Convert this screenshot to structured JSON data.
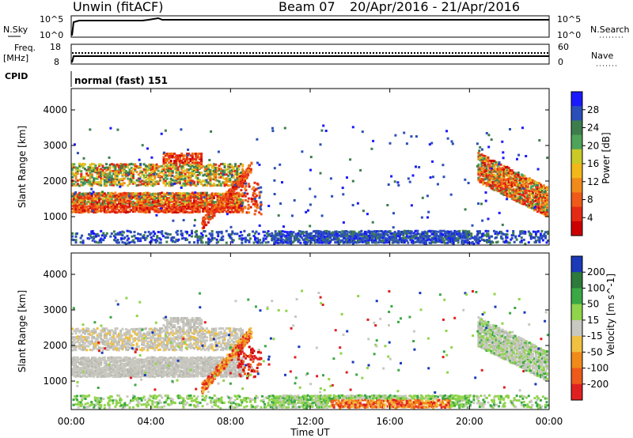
{
  "header": {
    "station": "Unwin (fitACF)",
    "beam": "Beam 07",
    "date_range": "20/Apr/2016 - 21/Apr/2016"
  },
  "nsky_panel": {
    "label": "N.Sky",
    "ticks_left": [
      "10^5",
      "10^0"
    ],
    "ticks_right": [
      "10^5",
      "10^0"
    ],
    "right_label": "N.Search"
  },
  "freq_panel": {
    "label_line1": "Freq.",
    "label_line2": "[MHz]",
    "ticks_left": [
      "18",
      "8"
    ],
    "ticks_right": [
      "60",
      "0"
    ],
    "right_label": "Nave"
  },
  "cpid_panel": {
    "label": "CPID",
    "mode_text": "normal (fast) 151"
  },
  "time_axis": {
    "label": "Time UT",
    "ticks": [
      "00:00",
      "04:00",
      "08:00",
      "12:00",
      "16:00",
      "20:00",
      "00:00"
    ]
  },
  "chart_data": [
    {
      "type": "heatmap",
      "name": "power",
      "ylabel": "Slant Range [km]",
      "yticks": [
        1000,
        2000,
        3000,
        4000
      ],
      "xlim": [
        0,
        24
      ],
      "ylim": [
        200,
        4600
      ],
      "colorbar": {
        "label": "Power [dB]",
        "ticks": [
          "4",
          "8",
          "12",
          "16",
          "20",
          "24",
          "28"
        ],
        "colors": [
          "#1a1aff",
          "#2a4fb8",
          "#3d7d4d",
          "#4fa35a",
          "#c9c928",
          "#f2b81a",
          "#f08a1a",
          "#ee5a1a",
          "#e52a14",
          "#cc0000"
        ]
      }
    },
    {
      "type": "heatmap",
      "name": "velocity",
      "ylabel": "Slant Range [km]",
      "yticks": [
        1000,
        2000,
        3000,
        4000
      ],
      "xlim": [
        0,
        24
      ],
      "ylim": [
        200,
        4600
      ],
      "colorbar": {
        "label": "Velocity [m s^-1]",
        "ticks": [
          "200",
          "100",
          "50",
          "15",
          "-15",
          "-50",
          "-100",
          "-200"
        ],
        "colors": [
          "#1a3ab8",
          "#2e7a3a",
          "#3aa845",
          "#8fd44a",
          "#c8c8c0",
          "#f0c040",
          "#f08a1a",
          "#ee5a1a",
          "#e02020"
        ]
      }
    }
  ]
}
